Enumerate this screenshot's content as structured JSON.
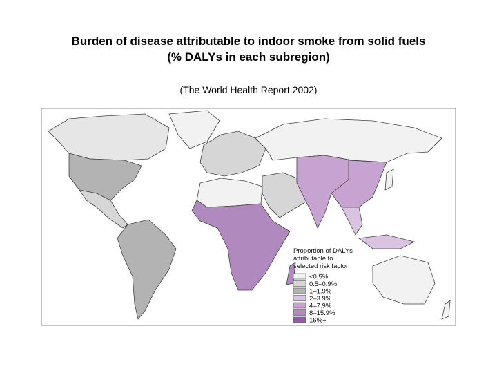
{
  "header": {
    "title": "Burden of disease attributable to indoor smoke from solid fuels",
    "title_line2": "(% DALYs in each subregion)",
    "subtitle": "(The World Health Report 2002)"
  },
  "legend": {
    "title": "Proportion of DALYs attributable to selected risk factor",
    "items": [
      {
        "label": "<0.5%",
        "color": "#f2f2f2"
      },
      {
        "label": "0.5–0.9%",
        "color": "#d6d6d6"
      },
      {
        "label": "1–1.9%",
        "color": "#b3b3b3"
      },
      {
        "label": "2–3.9%",
        "color": "#d9c3e0"
      },
      {
        "label": "4–7.9%",
        "color": "#c6a3d1"
      },
      {
        "label": "8–15.9%",
        "color": "#b08abf"
      },
      {
        "label": "16%+",
        "color": "#8f5fa3"
      }
    ]
  }
}
